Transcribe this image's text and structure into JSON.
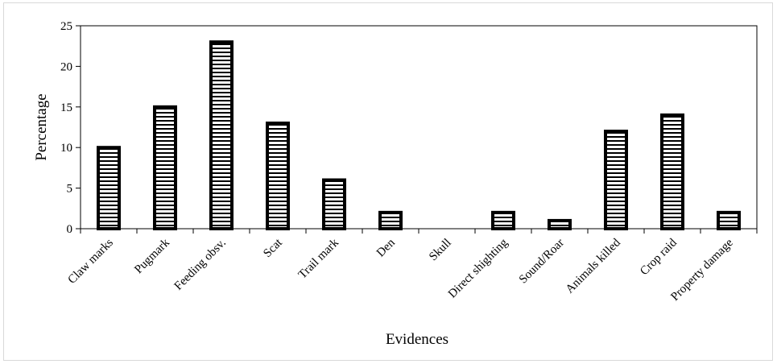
{
  "chart_data": {
    "type": "bar",
    "title": "",
    "xlabel": "Evidences",
    "ylabel": "Percentage",
    "ylim": [
      0,
      25
    ],
    "yticks": [
      0,
      5,
      10,
      15,
      20,
      25
    ],
    "grid": false,
    "legend": "none",
    "bar_fill": "horizontal-stripes",
    "colors": {
      "bar_outline": "#000000",
      "stripe": "#000000",
      "bar_background": "#ffffff",
      "axis": "#000000"
    },
    "categories": [
      "Claw marks",
      "Pugmark",
      "Feeding obsv.",
      "Scat",
      "Trail mark",
      "Den",
      "Skull",
      "Direct shighting",
      "Sound/Roar",
      "Animals killed",
      "Crop raid",
      "Property damage"
    ],
    "values": [
      10,
      15,
      23,
      13,
      6,
      2,
      0,
      2,
      1,
      12,
      14,
      2
    ]
  }
}
